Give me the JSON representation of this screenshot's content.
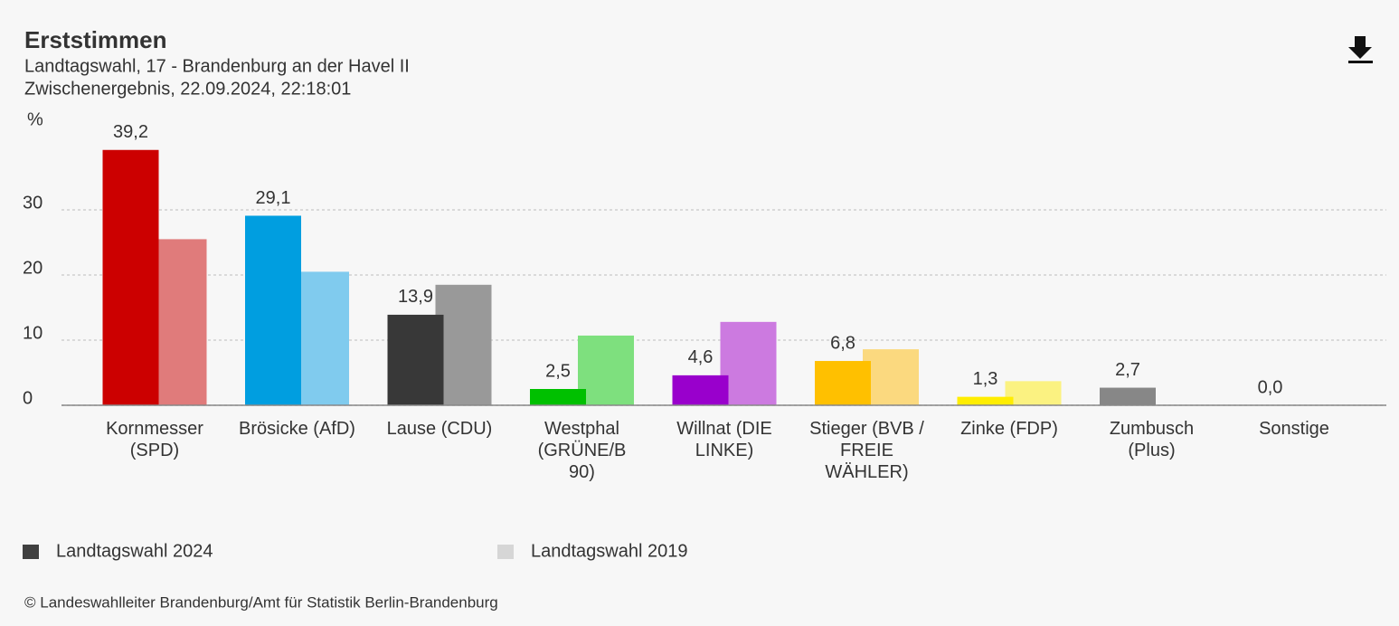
{
  "chart_data": {
    "type": "bar",
    "title": "Erststimmen",
    "subtitle": [
      "Landtagswahl, 17 - Brandenburg an der Havel II",
      "Zwischenergebnis, 22.09.2024, 22:18:01"
    ],
    "ylabel": "%",
    "categories": [
      "Kornmesser (SPD)",
      "Brösicke (AfD)",
      "Lause (CDU)",
      "Westphal (GRÜNE/B 90)",
      "Willnat (DIE LINKE)",
      "Stieger (BVB / FREIE WÄHLER)",
      "Zinke (FDP)",
      "Zumbusch (Plus)",
      "Sonstige"
    ],
    "series": [
      {
        "name": "Landtagswahl 2024",
        "color": "#404040",
        "colors": [
          "#cc0000",
          "#009ee0",
          "#383838",
          "#00c000",
          "#9900cc",
          "#ffc000",
          "#ffed00",
          "#878787",
          "#aaaaaa"
        ],
        "values": [
          39.2,
          29.1,
          13.9,
          2.5,
          4.6,
          6.8,
          1.3,
          2.7,
          0.0
        ],
        "value_labels": [
          "39,2",
          "29,1",
          "13,9",
          "2,5",
          "4,6",
          "6,8",
          "1,3",
          "2,7",
          "0,0"
        ]
      },
      {
        "name": "Landtagswahl 2019",
        "color": "#d6d6d6",
        "colors": [
          "#e07b7b",
          "#80cbee",
          "#999999",
          "#7ee07e",
          "#cc7ae0",
          "#fbd97f",
          "#fbf281",
          "#c3c3c3",
          "#d6d6d6"
        ],
        "values": [
          25.5,
          20.5,
          18.5,
          10.7,
          12.8,
          8.6,
          3.7,
          null,
          null
        ]
      }
    ],
    "ylim": [
      0,
      40
    ],
    "yticks": [
      0,
      10,
      20,
      30
    ],
    "grid": true,
    "source": "© Landeswahlleiter Brandenburg/Amt für Statistik Berlin-Brandenburg"
  }
}
